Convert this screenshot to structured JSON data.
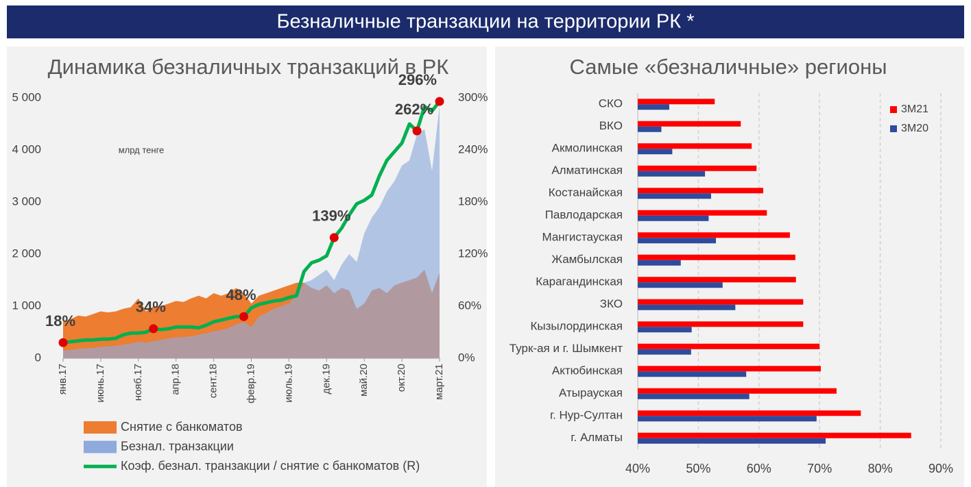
{
  "header": {
    "title": "Безналичные транзакции на территории РК *"
  },
  "chart_data": [
    {
      "type": "area",
      "title": "Динамика безналичных транзакций в РК",
      "annotation": "млрд тенге",
      "categories": [
        "янв.17",
        null,
        null,
        null,
        null,
        "июнь.17",
        null,
        null,
        null,
        null,
        "нояб.17",
        null,
        null,
        null,
        null,
        "апр.18",
        null,
        null,
        null,
        null,
        "сент.18",
        null,
        null,
        null,
        null,
        "февр.19",
        null,
        null,
        null,
        null,
        "июль.19",
        null,
        null,
        null,
        null,
        "дек.19",
        null,
        null,
        null,
        null,
        "май.20",
        null,
        null,
        null,
        null,
        "окт.20",
        null,
        null,
        null,
        null,
        "март.21"
      ],
      "ylim": [
        0,
        5000
      ],
      "yticks": [
        0,
        {
          "value": 1000,
          "label": "1 000"
        },
        {
          "value": 2000,
          "label": "2 000"
        },
        {
          "value": 3000,
          "label": "3 000"
        },
        {
          "value": 4000,
          "label": "4 000"
        },
        {
          "value": 5000,
          "label": "5 000"
        }
      ],
      "y2lim": [
        0,
        300
      ],
      "y2ticks": [
        {
          "value": 0,
          "label": "0%"
        },
        {
          "value": 60,
          "label": "60%"
        },
        {
          "value": 120,
          "label": "120%"
        },
        {
          "value": 180,
          "label": "180%"
        },
        {
          "value": 240,
          "label": "240%"
        },
        {
          "value": 300,
          "label": "300%"
        }
      ],
      "series": [
        {
          "name": "Снятие с банкоматов",
          "type": "area",
          "color": "#ed7d31",
          "values": [
            700,
            750,
            820,
            800,
            850,
            900,
            880,
            900,
            950,
            980,
            1150,
            900,
            1000,
            1000,
            1050,
            1100,
            1080,
            1150,
            1200,
            1150,
            1250,
            1200,
            1250,
            1350,
            1250,
            1050,
            1200,
            1250,
            1300,
            1350,
            1400,
            1450,
            1450,
            1350,
            1300,
            1400,
            1250,
            1350,
            1300,
            950,
            1050,
            1300,
            1350,
            1250,
            1400,
            1450,
            1500,
            1550,
            1700,
            1250,
            1650
          ]
        },
        {
          "name": "Безнал. транзакции",
          "type": "area",
          "color": "#8faadc",
          "values": [
            150,
            160,
            180,
            190,
            200,
            220,
            230,
            240,
            260,
            280,
            320,
            300,
            330,
            350,
            380,
            400,
            410,
            420,
            450,
            480,
            520,
            540,
            580,
            650,
            700,
            600,
            800,
            870,
            950,
            1000,
            1050,
            1200,
            1450,
            1500,
            1600,
            1700,
            1500,
            1800,
            2000,
            1850,
            2400,
            2700,
            2900,
            3200,
            3400,
            3700,
            3800,
            4300,
            4400,
            3600,
            4850
          ]
        },
        {
          "name": "Коэф. безнал. транзакции / снятие с банкоматов (R)",
          "type": "line",
          "axis": "y2",
          "color": "#00b050",
          "marker_color": "#e00000",
          "values": [
            18,
            19,
            20,
            21,
            21,
            22,
            22,
            23,
            27,
            29,
            29,
            30,
            34,
            33,
            34,
            36,
            36,
            36,
            35,
            38,
            42,
            44,
            46,
            48,
            48,
            58,
            62,
            64,
            66,
            67,
            70,
            72,
            100,
            110,
            113,
            118,
            139,
            150,
            165,
            178,
            182,
            188,
            210,
            228,
            238,
            248,
            270,
            262,
            290,
            285,
            296
          ],
          "value_labels": [
            "18%",
            null,
            null,
            null,
            null,
            null,
            null,
            null,
            null,
            null,
            null,
            null,
            "34%",
            null,
            null,
            null,
            null,
            null,
            null,
            null,
            null,
            null,
            null,
            null,
            "48%",
            null,
            null,
            null,
            null,
            null,
            null,
            null,
            null,
            null,
            null,
            null,
            "139%",
            null,
            null,
            null,
            null,
            null,
            null,
            null,
            null,
            null,
            null,
            "262%",
            null,
            null,
            "296%"
          ]
        }
      ]
    },
    {
      "type": "hbar",
      "title": "Самые «безналичные» регионы",
      "categories": [
        "СКО",
        "ВКО",
        "Акмолинская",
        "Алматинская",
        "Костанайская",
        "Павлодарская",
        "Мангистауская",
        "Жамбылская",
        "Карагандинская",
        "ЗКО",
        "Кызылординская",
        "Турк-ая и г. Шымкент",
        "Актюбинская",
        "Атырауская",
        "г. Нур-Султан",
        "г. Алматы"
      ],
      "xlim": [
        40,
        90
      ],
      "xticks": [
        {
          "value": 40,
          "label": "40%"
        },
        {
          "value": 50,
          "label": "50%"
        },
        {
          "value": 60,
          "label": "60%"
        },
        {
          "value": 70,
          "label": "70%"
        },
        {
          "value": 80,
          "label": "80%"
        },
        {
          "value": 90,
          "label": "90%"
        }
      ],
      "grid": true,
      "legend": "top-right",
      "series": [
        {
          "name": "3M21",
          "color": "#ff0000",
          "values": [
            52.7,
            57.0,
            58.8,
            59.6,
            60.7,
            61.3,
            65.1,
            66.0,
            66.1,
            67.3,
            67.3,
            70.0,
            70.2,
            72.8,
            76.8,
            85.1
          ]
        },
        {
          "name": "3M20",
          "color": "#2f4b9b",
          "values": [
            45.2,
            43.9,
            45.7,
            51.1,
            52.1,
            51.7,
            52.9,
            47.1,
            54.0,
            56.1,
            48.9,
            48.8,
            57.9,
            58.4,
            69.5,
            71.0
          ]
        }
      ]
    }
  ]
}
